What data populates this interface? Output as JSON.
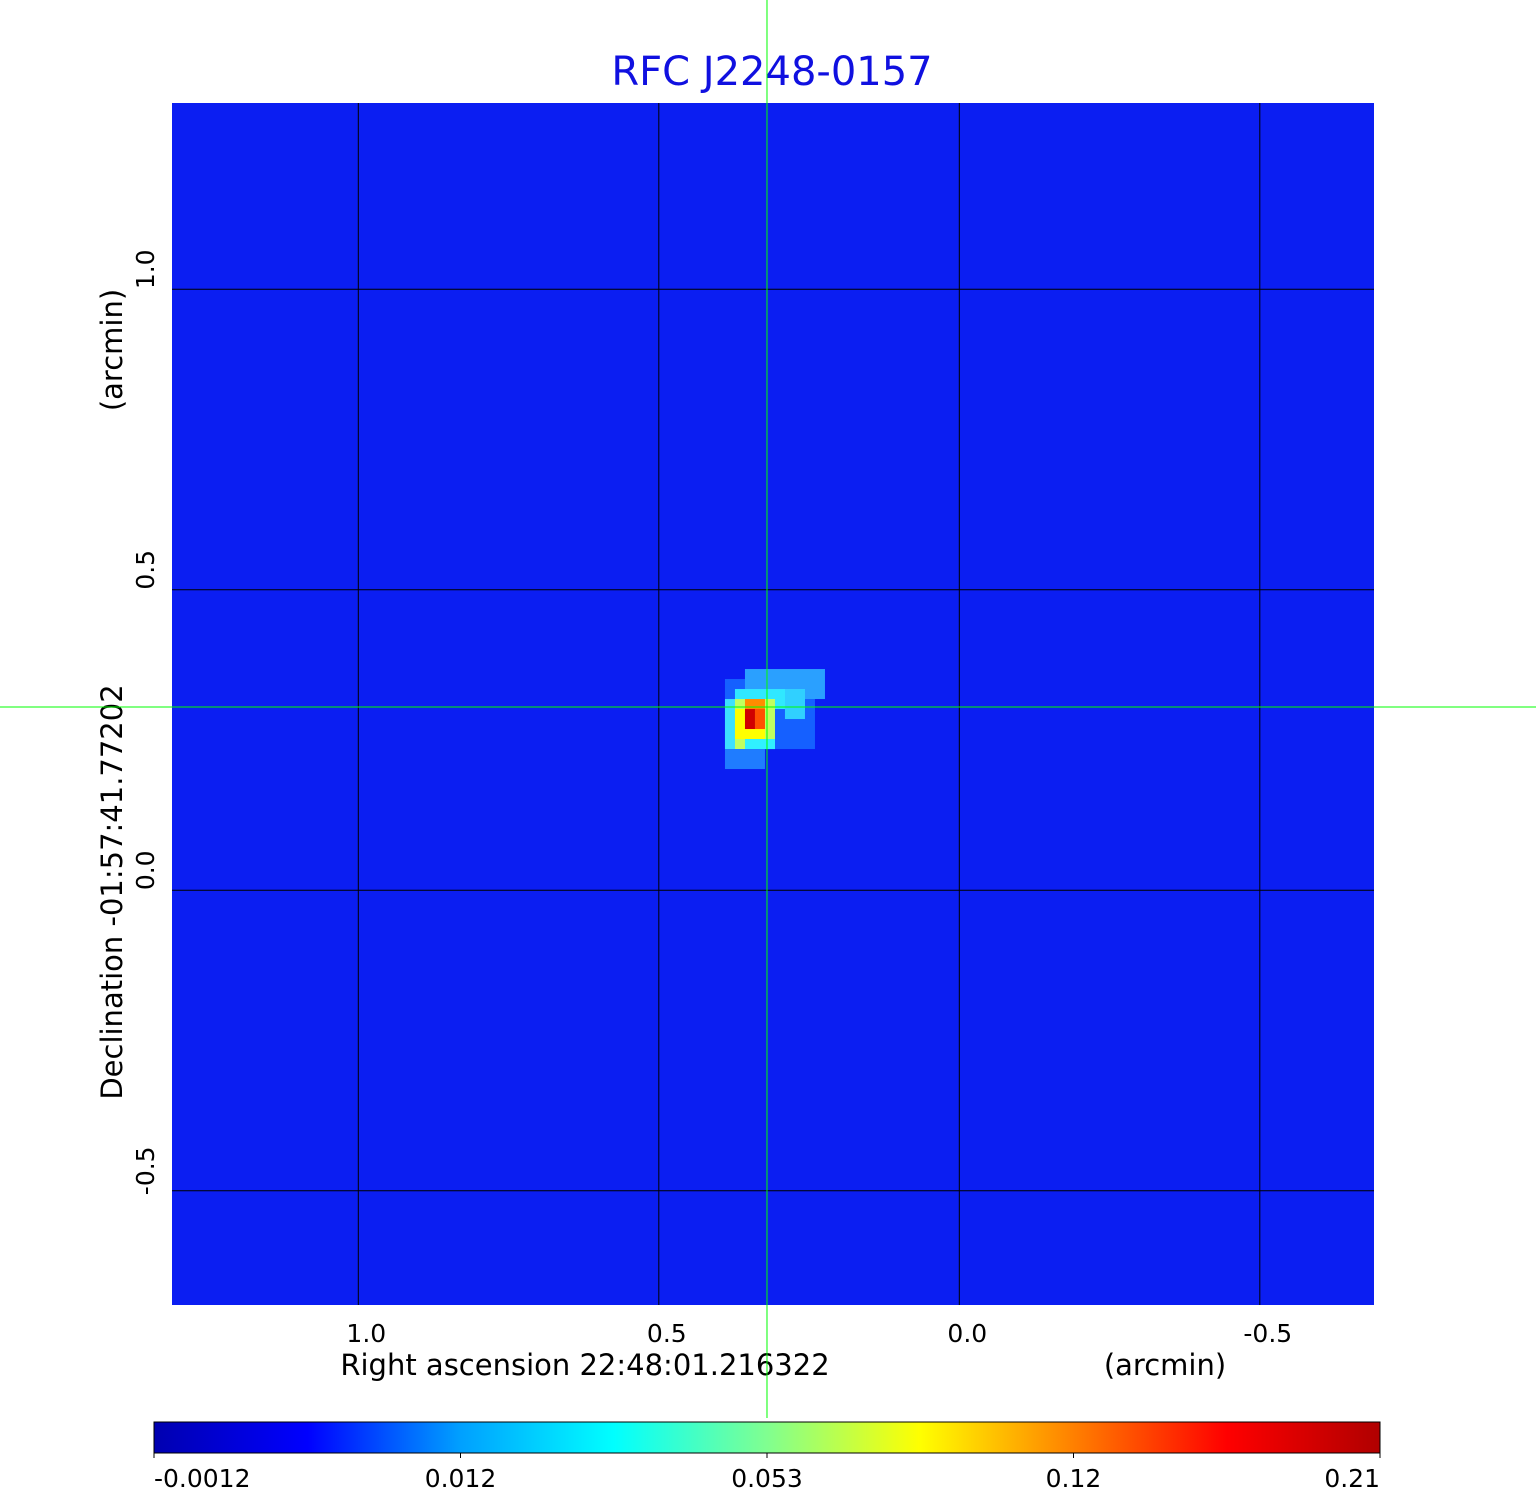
{
  "chart_data": {
    "type": "heatmap",
    "title": "RFC J2248-0157",
    "xlabel": "Right ascension  22:48:01.216322",
    "xunit": "(arcmin)",
    "ylabel": "Declination  -01:57:41.77202",
    "yunit": "(arcmin)",
    "xlim": [
      1.31,
      -0.69
    ],
    "ylim": [
      -0.69,
      1.31
    ],
    "xticks": [
      {
        "v": 1.0,
        "label": "1.0"
      },
      {
        "v": 0.5,
        "label": "0.5"
      },
      {
        "v": 0.0,
        "label": "0.0"
      },
      {
        "v": -0.5,
        "label": "-0.5"
      }
    ],
    "yticks": [
      {
        "v": 1.0,
        "label": "1.0"
      },
      {
        "v": 0.5,
        "label": "0.5"
      },
      {
        "v": 0.0,
        "label": "0.0"
      },
      {
        "v": -0.5,
        "label": "-0.5"
      }
    ],
    "grid": true,
    "crosshair": {
      "x": 0.32,
      "y": 0.305,
      "color": "#00ff00"
    },
    "peak": {
      "x": 0.34,
      "y": 0.285,
      "value": 0.21
    },
    "colormap": "jet",
    "colorbar": {
      "ticks": [
        "-0.0012",
        "0.012",
        "0.053",
        "0.12",
        "0.21"
      ],
      "colors": [
        "#0000b0",
        "#0000ff",
        "#00a0ff",
        "#00ffff",
        "#80ff90",
        "#ffff00",
        "#ff8000",
        "#ff0000",
        "#b00000"
      ]
    },
    "colors": {
      "title": "#1010e0",
      "background": "#0b1ef2",
      "grid": "#000000"
    }
  }
}
